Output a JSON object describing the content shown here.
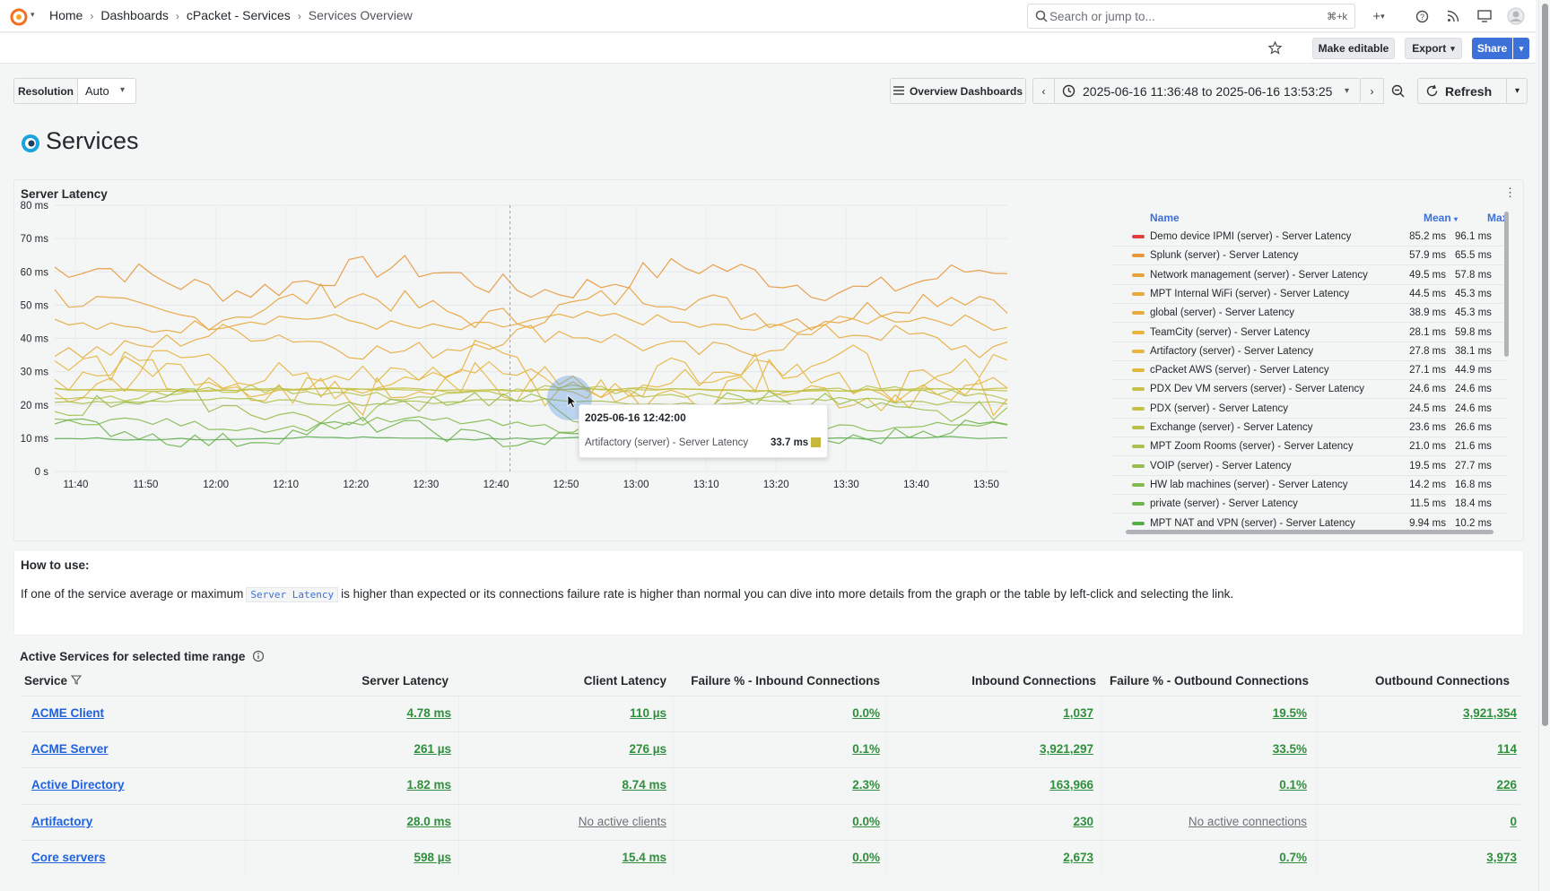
{
  "breadcrumbs": [
    "Home",
    "Dashboards",
    "cPacket - Services",
    "Services Overview"
  ],
  "search": {
    "placeholder": "Search or jump to...",
    "shortcut": "⌘+k"
  },
  "actions": {
    "make_editable": "Make editable",
    "export": "Export",
    "share": "Share"
  },
  "controls": {
    "resolution_label": "Resolution",
    "resolution_value": "Auto",
    "overview_dashboards": "Overview Dashboards",
    "time_range": "2025-06-16 11:36:48 to 2025-06-16 13:53:25",
    "refresh": "Refresh"
  },
  "page_title": "Services",
  "panel": {
    "title": "Server Latency",
    "legend_headers": {
      "name": "Name",
      "mean": "Mean",
      "max": "Max"
    },
    "legend": [
      {
        "name": "Demo device IPMI (server) - Server Latency",
        "mean": "85.2 ms",
        "max": "96.1 ms",
        "color": "#e0413f"
      },
      {
        "name": "Splunk (server) - Server Latency",
        "mean": "57.9 ms",
        "max": "65.5 ms",
        "color": "#e8973a"
      },
      {
        "name": "Network management (server) - Server Latency",
        "mean": "49.5 ms",
        "max": "57.8 ms",
        "color": "#e8a23a"
      },
      {
        "name": "MPT Internal WiFi (server) - Server Latency",
        "mean": "44.5 ms",
        "max": "45.3 ms",
        "color": "#e8a83a"
      },
      {
        "name": "global (server) - Server Latency",
        "mean": "38.9 ms",
        "max": "45.3 ms",
        "color": "#e8ac3e"
      },
      {
        "name": "TeamCity (server) - Server Latency",
        "mean": "28.1 ms",
        "max": "59.8 ms",
        "color": "#e8b43e"
      },
      {
        "name": "Artifactory (server) - Server Latency",
        "mean": "27.8 ms",
        "max": "38.1 ms",
        "color": "#e6b640"
      },
      {
        "name": "cPacket AWS (server) - Server Latency",
        "mean": "27.1 ms",
        "max": "44.9 ms",
        "color": "#e2b840"
      },
      {
        "name": "PDX Dev VM servers (server) - Server Latency",
        "mean": "24.6 ms",
        "max": "24.6 ms",
        "color": "#c8c046"
      },
      {
        "name": "PDX (server) - Server Latency",
        "mean": "24.5 ms",
        "max": "24.6 ms",
        "color": "#c2c248"
      },
      {
        "name": "Exchange (server) - Server Latency",
        "mean": "23.6 ms",
        "max": "26.6 ms",
        "color": "#b8c24a"
      },
      {
        "name": "MPT Zoom Rooms (server) - Server Latency",
        "mean": "21.0 ms",
        "max": "21.6 ms",
        "color": "#a8c04c"
      },
      {
        "name": "VOIP (server) - Server Latency",
        "mean": "19.5 ms",
        "max": "27.7 ms",
        "color": "#98be4e"
      },
      {
        "name": "HW lab machines (server) - Server Latency",
        "mean": "14.2 ms",
        "max": "16.8 ms",
        "color": "#84ba4e"
      },
      {
        "name": "private (server) - Server Latency",
        "mean": "11.5 ms",
        "max": "18.4 ms",
        "color": "#6eb44e"
      },
      {
        "name": "MPT NAT and VPN (server) - Server Latency",
        "mean": "9.94 ms",
        "max": "10.2 ms",
        "color": "#5aad4c"
      }
    ],
    "tooltip": {
      "time": "2025-06-16 12:42:00",
      "series": "Artifactory (server) - Server Latency",
      "value": "33.7 ms",
      "color": "#c6b83a"
    }
  },
  "chart_data": {
    "type": "line",
    "y_ticks": [
      "0 s",
      "10 ms",
      "20 ms",
      "30 ms",
      "40 ms",
      "50 ms",
      "60 ms",
      "70 ms",
      "80 ms"
    ],
    "x_ticks": [
      "11:40",
      "11:50",
      "12:00",
      "12:10",
      "12:20",
      "12:30",
      "12:40",
      "12:50",
      "13:00",
      "13:10",
      "13:20",
      "13:30",
      "13:40",
      "13:50"
    ],
    "ylim": [
      0,
      80
    ],
    "x_start": "11:37",
    "x_end": "13:53",
    "series": [
      {
        "name": "Demo device IPMI (server) - Server Latency",
        "mean": 85.2,
        "amp": 5,
        "color": "#e0413f",
        "short": true
      },
      {
        "name": "Splunk (server) - Server Latency",
        "mean": 57.9,
        "amp": 6,
        "color": "#e8973a"
      },
      {
        "name": "Network management (server) - Server Latency",
        "mean": 49.5,
        "amp": 6,
        "color": "#e8a23a"
      },
      {
        "name": "MPT Internal WiFi (server) - Server Latency",
        "mean": 44.5,
        "amp": 3,
        "color": "#e8a83a"
      },
      {
        "name": "global (server) - Server Latency",
        "mean": 38.9,
        "amp": 5,
        "color": "#e8ac3e"
      },
      {
        "name": "TeamCity (server) - Server Latency",
        "mean": 28.1,
        "amp": 10,
        "color": "#e8b43e"
      },
      {
        "name": "Artifactory (server) - Server Latency",
        "mean": 27.8,
        "amp": 6,
        "color": "#e6b640"
      },
      {
        "name": "cPacket AWS (server) - Server Latency",
        "mean": 27.1,
        "amp": 8,
        "color": "#e2b840"
      },
      {
        "name": "PDX Dev VM servers (server) - Server Latency",
        "mean": 24.6,
        "amp": 0.5,
        "color": "#c8c046"
      },
      {
        "name": "PDX (server) - Server Latency",
        "mean": 24.5,
        "amp": 0.5,
        "color": "#c2c248"
      },
      {
        "name": "Exchange (server) - Server Latency",
        "mean": 23.6,
        "amp": 2,
        "color": "#b8c24a"
      },
      {
        "name": "MPT Zoom Rooms (server) - Server Latency",
        "mean": 21.0,
        "amp": 1,
        "color": "#a8c04c"
      },
      {
        "name": "VOIP (server) - Server Latency",
        "mean": 19.5,
        "amp": 5,
        "color": "#98be4e"
      },
      {
        "name": "HW lab machines (server) - Server Latency",
        "mean": 14.2,
        "amp": 2,
        "color": "#84ba4e"
      },
      {
        "name": "private (server) - Server Latency",
        "mean": 11.5,
        "amp": 4,
        "color": "#6eb44e"
      },
      {
        "name": "MPT NAT and VPN (server) - Server Latency",
        "mean": 9.94,
        "amp": 0.5,
        "color": "#5aad4c"
      }
    ]
  },
  "howto": {
    "title": "How to use:",
    "text_before": "If one of the service average or maximum",
    "code": "Server Latency",
    "text_after": "is higher than expected or its connections failure rate is higher than normal you can dive into more details from the graph or the table by left-click and selecting the link."
  },
  "table": {
    "title": "Active Services for selected time range",
    "headers": [
      "Service",
      "Server Latency",
      "Client Latency",
      "Failure % - Inbound Connections",
      "Inbound Connections",
      "Failure % - Outbound Connections",
      "Outbound Connections"
    ],
    "rows": [
      [
        "ACME Client",
        "4.78 ms",
        "110 µs",
        "0.0%",
        "1,037",
        "19.5%",
        "3,921,354"
      ],
      [
        "ACME Server",
        "261 µs",
        "276 µs",
        "0.1%",
        "3,921,297",
        "33.5%",
        "114"
      ],
      [
        "Active Directory",
        "1.82 ms",
        "8.74 ms",
        "2.3%",
        "163,966",
        "0.1%",
        "226"
      ],
      [
        "Artifactory",
        "28.0 ms",
        "No active clients",
        "0.0%",
        "230",
        "No active connections",
        "0"
      ],
      [
        "Core servers",
        "598 µs",
        "15.4 ms",
        "0.0%",
        "2,673",
        "0.7%",
        "3,973"
      ]
    ]
  }
}
